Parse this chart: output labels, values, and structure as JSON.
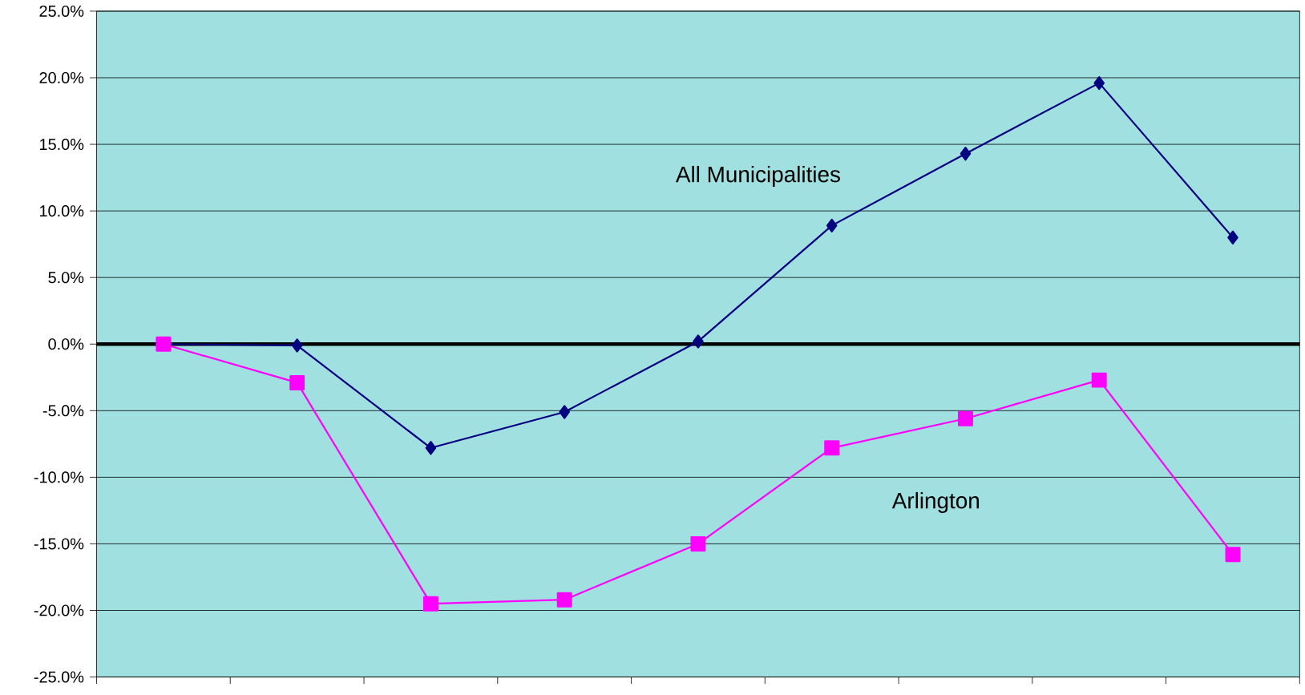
{
  "chart_data": {
    "type": "line",
    "categories": [
      null,
      null,
      null,
      null,
      null,
      null,
      null,
      null,
      null
    ],
    "series": [
      {
        "name": "All Municipalities",
        "color": "#000080",
        "marker": "diamond",
        "values": [
          0.0,
          -0.1,
          -7.8,
          -5.1,
          0.2,
          8.9,
          14.3,
          19.6,
          8.0
        ]
      },
      {
        "name": "Arlington",
        "color": "#ff00ff",
        "marker": "square",
        "values": [
          0.0,
          -2.9,
          -19.5,
          -19.2,
          -15.0,
          -7.8,
          -5.6,
          -2.7,
          -15.8
        ]
      }
    ],
    "ylim": [
      -25,
      25
    ],
    "yticks": [
      {
        "value": -25,
        "label": "-25.0%"
      },
      {
        "value": -20,
        "label": "-20.0%"
      },
      {
        "value": -15,
        "label": "-15.0%"
      },
      {
        "value": -10,
        "label": "-10.0%"
      },
      {
        "value": -5,
        "label": "-5.0%"
      },
      {
        "value": 0,
        "label": "0.0%"
      },
      {
        "value": 5,
        "label": "5.0%"
      },
      {
        "value": 10,
        "label": "10.0%"
      },
      {
        "value": 15,
        "label": "15.0%"
      },
      {
        "value": 20,
        "label": "20.0%"
      },
      {
        "value": 25,
        "label": "25.0%"
      }
    ],
    "grid": "y",
    "line_style": "solid",
    "ref_lines": [
      {
        "axis": "y",
        "value": 0,
        "color": "#000000"
      }
    ]
  }
}
